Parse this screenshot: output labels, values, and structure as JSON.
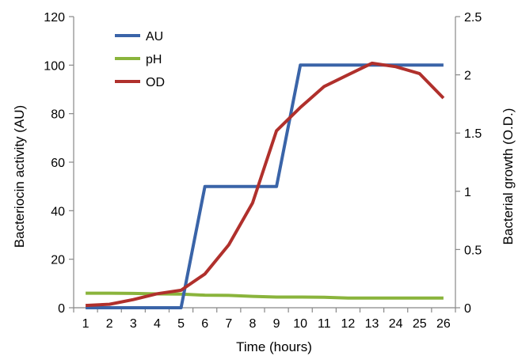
{
  "chart_data": {
    "type": "line",
    "title": "",
    "xlabel": "Time (hours)",
    "ylabel_left": "Bacteriocin activity (AU)",
    "ylabel_right": "Bacterial growth (O.D.)",
    "categories": [
      "1",
      "2",
      "3",
      "4",
      "5",
      "6",
      "7",
      "8",
      "9",
      "10",
      "11",
      "12",
      "13",
      "24",
      "25",
      "26"
    ],
    "y_left_ticks": [
      "0",
      "20",
      "40",
      "60",
      "80",
      "100",
      "120"
    ],
    "y_right_ticks": [
      "0",
      "0.5",
      "1",
      "1.5",
      "2",
      "2.5"
    ],
    "ylim_left": [
      0,
      120
    ],
    "ylim_right": [
      0,
      2.5
    ],
    "legend_position": "top-left",
    "grid": false,
    "series": [
      {
        "name": "AU",
        "axis": "left",
        "color": "#3a64a8",
        "step": true,
        "values": [
          0,
          0,
          0,
          0,
          0,
          50,
          50,
          50,
          50,
          100,
          100,
          100,
          100,
          100,
          100,
          100
        ]
      },
      {
        "name": "pH",
        "axis": "left",
        "color": "#8ab43c",
        "step": false,
        "values": [
          6.0,
          6.0,
          5.9,
          5.7,
          5.6,
          5.2,
          5.1,
          4.7,
          4.4,
          4.4,
          4.3,
          4.0,
          4.0,
          4.0,
          4.0,
          4.0
        ]
      },
      {
        "name": "OD",
        "axis": "right",
        "color": "#b0302c",
        "step": false,
        "values": [
          0.02,
          0.03,
          0.07,
          0.12,
          0.15,
          0.29,
          0.54,
          0.9,
          1.52,
          1.72,
          1.9,
          2.0,
          2.1,
          2.07,
          2.01,
          1.8
        ]
      }
    ]
  }
}
